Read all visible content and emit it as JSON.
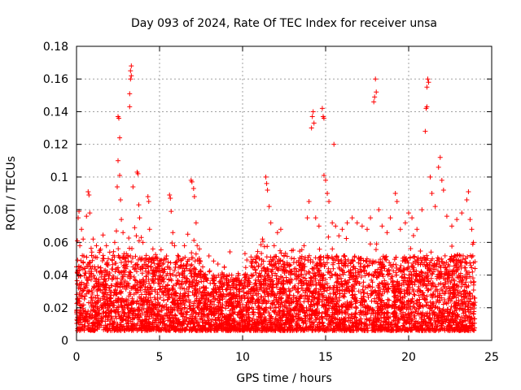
{
  "chart_data": {
    "type": "scatter",
    "title": "Day 093 of 2024, Rate Of TEC Index for receiver unsa",
    "xlabel": "GPS time / hours",
    "ylabel": "ROTI / TECUs",
    "xlim": [
      0,
      25
    ],
    "ylim": [
      0,
      0.18
    ],
    "x_ticks": [
      0,
      5,
      10,
      15,
      20,
      25
    ],
    "x_tick_labels": [
      "0",
      "5",
      "10",
      "15",
      "20",
      "25"
    ],
    "y_ticks": [
      0,
      0.02,
      0.04,
      0.06,
      0.08,
      0.1,
      0.12,
      0.14,
      0.16,
      0.18
    ],
    "y_tick_labels": [
      "0",
      "0.02",
      "0.04",
      "0.06",
      "0.08",
      "0.1",
      "0.12",
      "0.14",
      "0.16",
      "0.18"
    ],
    "grid": true,
    "marker": "plus",
    "marker_color": "#ff0000",
    "series": [
      {
        "name": "ROTI",
        "points": [
          [
            0.05,
            0.061
          ],
          [
            0.1,
            0.075
          ],
          [
            0.15,
            0.079
          ],
          [
            0.2,
            0.058
          ],
          [
            0.3,
            0.068
          ],
          [
            0.4,
            0.062
          ],
          [
            0.6,
            0.076
          ],
          [
            0.7,
            0.091
          ],
          [
            0.75,
            0.089
          ],
          [
            0.8,
            0.078
          ],
          [
            1.0,
            0.062
          ],
          [
            1.2,
            0.058
          ],
          [
            1.4,
            0.055
          ],
          [
            1.6,
            0.052
          ],
          [
            1.8,
            0.058
          ],
          [
            2.0,
            0.054
          ],
          [
            2.2,
            0.052
          ],
          [
            2.3,
            0.06
          ],
          [
            2.4,
            0.067
          ],
          [
            2.45,
            0.094
          ],
          [
            2.5,
            0.11
          ],
          [
            2.5,
            0.137
          ],
          [
            2.55,
            0.136
          ],
          [
            2.6,
            0.124
          ],
          [
            2.6,
            0.101
          ],
          [
            2.65,
            0.086
          ],
          [
            2.7,
            0.074
          ],
          [
            2.8,
            0.066
          ],
          [
            3.0,
            0.053
          ],
          [
            3.2,
            0.143
          ],
          [
            3.2,
            0.151
          ],
          [
            3.25,
            0.16
          ],
          [
            3.25,
            0.165
          ],
          [
            3.3,
            0.168
          ],
          [
            3.3,
            0.162
          ],
          [
            3.4,
            0.094
          ],
          [
            3.5,
            0.069
          ],
          [
            3.6,
            0.064
          ],
          [
            3.65,
            0.103
          ],
          [
            3.7,
            0.102
          ],
          [
            3.75,
            0.083
          ],
          [
            3.8,
            0.075
          ],
          [
            3.9,
            0.063
          ],
          [
            4.0,
            0.06
          ],
          [
            4.2,
            0.052
          ],
          [
            4.3,
            0.088
          ],
          [
            4.35,
            0.085
          ],
          [
            4.4,
            0.068
          ],
          [
            4.6,
            0.056
          ],
          [
            4.8,
            0.05
          ],
          [
            5.0,
            0.046
          ],
          [
            5.2,
            0.043
          ],
          [
            5.4,
            0.05
          ],
          [
            5.6,
            0.089
          ],
          [
            5.65,
            0.087
          ],
          [
            5.7,
            0.079
          ],
          [
            5.8,
            0.066
          ],
          [
            5.9,
            0.058
          ],
          [
            6.1,
            0.052
          ],
          [
            6.3,
            0.046
          ],
          [
            6.5,
            0.058
          ],
          [
            6.7,
            0.065
          ],
          [
            6.9,
            0.098
          ],
          [
            6.95,
            0.097
          ],
          [
            7.05,
            0.093
          ],
          [
            7.1,
            0.088
          ],
          [
            7.2,
            0.072
          ],
          [
            7.4,
            0.056
          ],
          [
            7.6,
            0.045
          ],
          [
            7.8,
            0.038
          ],
          [
            8.0,
            0.042
          ],
          [
            8.3,
            0.035
          ],
          [
            8.6,
            0.032
          ],
          [
            8.9,
            0.034
          ],
          [
            9.2,
            0.04
          ],
          [
            9.5,
            0.036
          ],
          [
            9.8,
            0.034
          ],
          [
            10.1,
            0.04
          ],
          [
            10.4,
            0.038
          ],
          [
            10.7,
            0.045
          ],
          [
            11.0,
            0.05
          ],
          [
            11.2,
            0.062
          ],
          [
            11.4,
            0.1
          ],
          [
            11.45,
            0.096
          ],
          [
            11.5,
            0.092
          ],
          [
            11.6,
            0.082
          ],
          [
            11.7,
            0.072
          ],
          [
            11.9,
            0.058
          ],
          [
            12.1,
            0.066
          ],
          [
            12.3,
            0.068
          ],
          [
            12.5,
            0.052
          ],
          [
            12.8,
            0.046
          ],
          [
            13.1,
            0.05
          ],
          [
            13.4,
            0.046
          ],
          [
            13.7,
            0.058
          ],
          [
            13.9,
            0.075
          ],
          [
            14.0,
            0.085
          ],
          [
            14.15,
            0.13
          ],
          [
            14.2,
            0.137
          ],
          [
            14.25,
            0.14
          ],
          [
            14.3,
            0.133
          ],
          [
            14.4,
            0.075
          ],
          [
            14.6,
            0.07
          ],
          [
            14.8,
            0.142
          ],
          [
            14.85,
            0.137
          ],
          [
            14.9,
            0.136
          ],
          [
            14.9,
            0.101
          ],
          [
            15.0,
            0.098
          ],
          [
            15.1,
            0.09
          ],
          [
            15.2,
            0.085
          ],
          [
            15.4,
            0.072
          ],
          [
            15.5,
            0.12
          ],
          [
            15.6,
            0.07
          ],
          [
            15.8,
            0.064
          ],
          [
            16.0,
            0.068
          ],
          [
            16.3,
            0.072
          ],
          [
            16.6,
            0.075
          ],
          [
            16.9,
            0.072
          ],
          [
            17.2,
            0.07
          ],
          [
            17.5,
            0.068
          ],
          [
            17.7,
            0.075
          ],
          [
            17.9,
            0.146
          ],
          [
            17.95,
            0.149
          ],
          [
            18.0,
            0.16
          ],
          [
            18.05,
            0.152
          ],
          [
            18.2,
            0.08
          ],
          [
            18.4,
            0.07
          ],
          [
            18.7,
            0.066
          ],
          [
            18.9,
            0.075
          ],
          [
            19.2,
            0.09
          ],
          [
            19.3,
            0.085
          ],
          [
            19.5,
            0.068
          ],
          [
            19.8,
            0.072
          ],
          [
            20.0,
            0.078
          ],
          [
            20.2,
            0.075
          ],
          [
            20.5,
            0.068
          ],
          [
            20.8,
            0.08
          ],
          [
            21.0,
            0.128
          ],
          [
            21.05,
            0.142
          ],
          [
            21.1,
            0.143
          ],
          [
            21.1,
            0.155
          ],
          [
            21.15,
            0.16
          ],
          [
            21.2,
            0.158
          ],
          [
            21.3,
            0.1
          ],
          [
            21.4,
            0.09
          ],
          [
            21.6,
            0.082
          ],
          [
            21.8,
            0.106
          ],
          [
            21.9,
            0.112
          ],
          [
            22.0,
            0.098
          ],
          [
            22.1,
            0.092
          ],
          [
            22.3,
            0.076
          ],
          [
            22.6,
            0.07
          ],
          [
            22.9,
            0.074
          ],
          [
            23.2,
            0.078
          ],
          [
            23.5,
            0.086
          ],
          [
            23.6,
            0.091
          ],
          [
            23.7,
            0.074
          ],
          [
            23.8,
            0.068
          ],
          [
            23.9,
            0.06
          ]
        ]
      }
    ]
  }
}
